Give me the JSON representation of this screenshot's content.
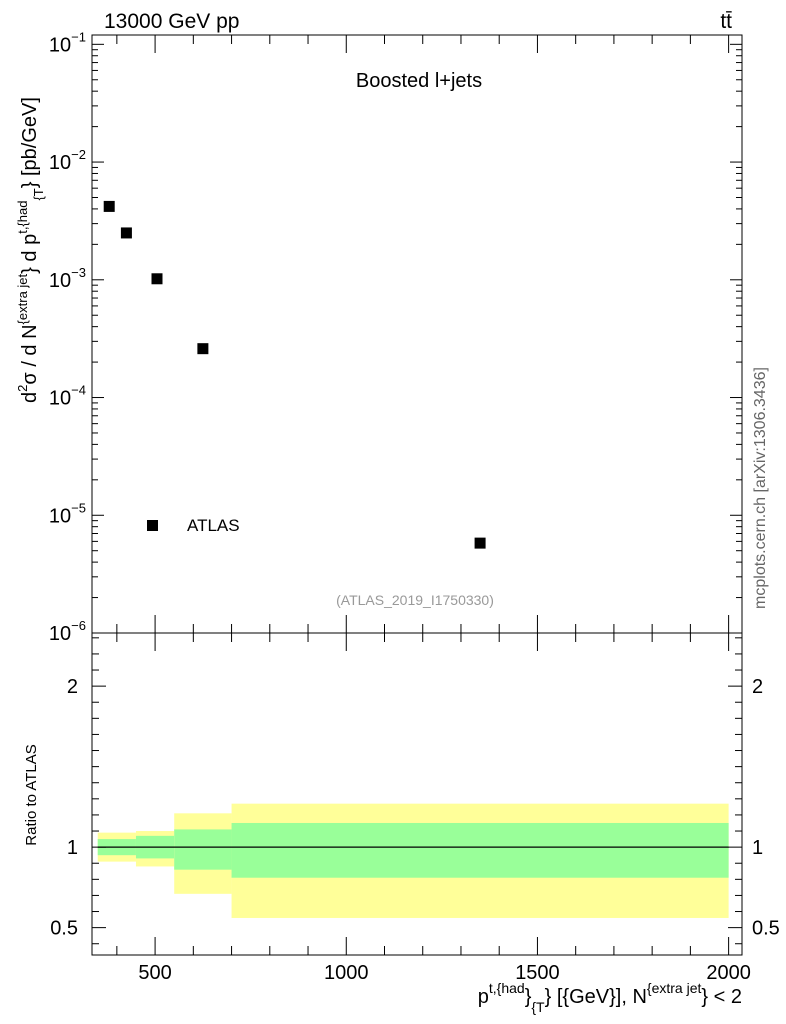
{
  "header": {
    "left": "13000 GeV pp",
    "right": "tt̄"
  },
  "side_label": "mcplots.cern.ch [arXiv:1306.3436]",
  "chart_data": [
    {
      "type": "scatter",
      "title": "Boosted l+jets",
      "ylabel_parts": {
        "d2": "d",
        "sup2": "2",
        "sigma": "σ / d N",
        "sup_extra": "{extra jet",
        "mid": "} d p",
        "sup_thad": "t,{had",
        "sub_T": "{T",
        "unit": "} [pb/GeV]"
      },
      "y_scale": "log",
      "ylim": [
        1e-06,
        0.12
      ],
      "y_ticks": [
        {
          "value": 1e-06,
          "base": "10",
          "exp": "−6"
        },
        {
          "value": 1e-05,
          "base": "10",
          "exp": "−5"
        },
        {
          "value": 0.0001,
          "base": "10",
          "exp": "−4"
        },
        {
          "value": 0.001,
          "base": "10",
          "exp": "−3"
        },
        {
          "value": 0.01,
          "base": "10",
          "exp": "−2"
        },
        {
          "value": 0.1,
          "base": "10",
          "exp": "−1"
        }
      ],
      "xlim": [
        335,
        2035
      ],
      "series": [
        {
          "name": "ATLAS",
          "color": "#000000",
          "points": [
            {
              "x": 380,
              "y": 0.0042
            },
            {
              "x": 425,
              "y": 0.0025
            },
            {
              "x": 505,
              "y": 0.00102
            },
            {
              "x": 625,
              "y": 0.00026
            },
            {
              "x": 1350,
              "y": 5.8e-06
            }
          ]
        }
      ],
      "legend": {
        "label": "ATLAS",
        "position": "bottom-left"
      },
      "reference": "(ATLAS_2019_I1750330)"
    },
    {
      "type": "area",
      "ylabel": "Ratio to ATLAS",
      "xlabel_parts": {
        "p": "p",
        "sup_thad": "t,{had",
        "close1": "}",
        "sub_T": "{T",
        "mid": "} [{GeV}], N",
        "sup_extra": "{extra jet",
        "end": "} < 2"
      },
      "ylim": [
        0.33,
        2.33
      ],
      "y_ticks": [
        0.5,
        1,
        2
      ],
      "y_tick_labels": [
        "0.5",
        "1",
        "2"
      ],
      "xlim": [
        335,
        2035
      ],
      "x_ticks": [
        500,
        1000,
        1500,
        2000
      ],
      "x_tick_labels": [
        "500",
        "1000",
        "1500",
        "2000"
      ],
      "reference_line": 1,
      "band_colors": {
        "outer": "#ffff99",
        "inner": "#99ff99",
        "line": "#000000"
      },
      "bins": [
        {
          "x0": 350,
          "x1": 450,
          "outer": [
            0.91,
            1.09
          ],
          "inner": [
            0.95,
            1.05
          ]
        },
        {
          "x0": 450,
          "x1": 550,
          "outer": [
            0.88,
            1.1
          ],
          "inner": [
            0.93,
            1.07
          ]
        },
        {
          "x0": 550,
          "x1": 700,
          "outer": [
            0.71,
            1.21
          ],
          "inner": [
            0.86,
            1.11
          ]
        },
        {
          "x0": 700,
          "x1": 2000,
          "outer": [
            0.56,
            1.27
          ],
          "inner": [
            0.81,
            1.15
          ]
        }
      ]
    }
  ]
}
